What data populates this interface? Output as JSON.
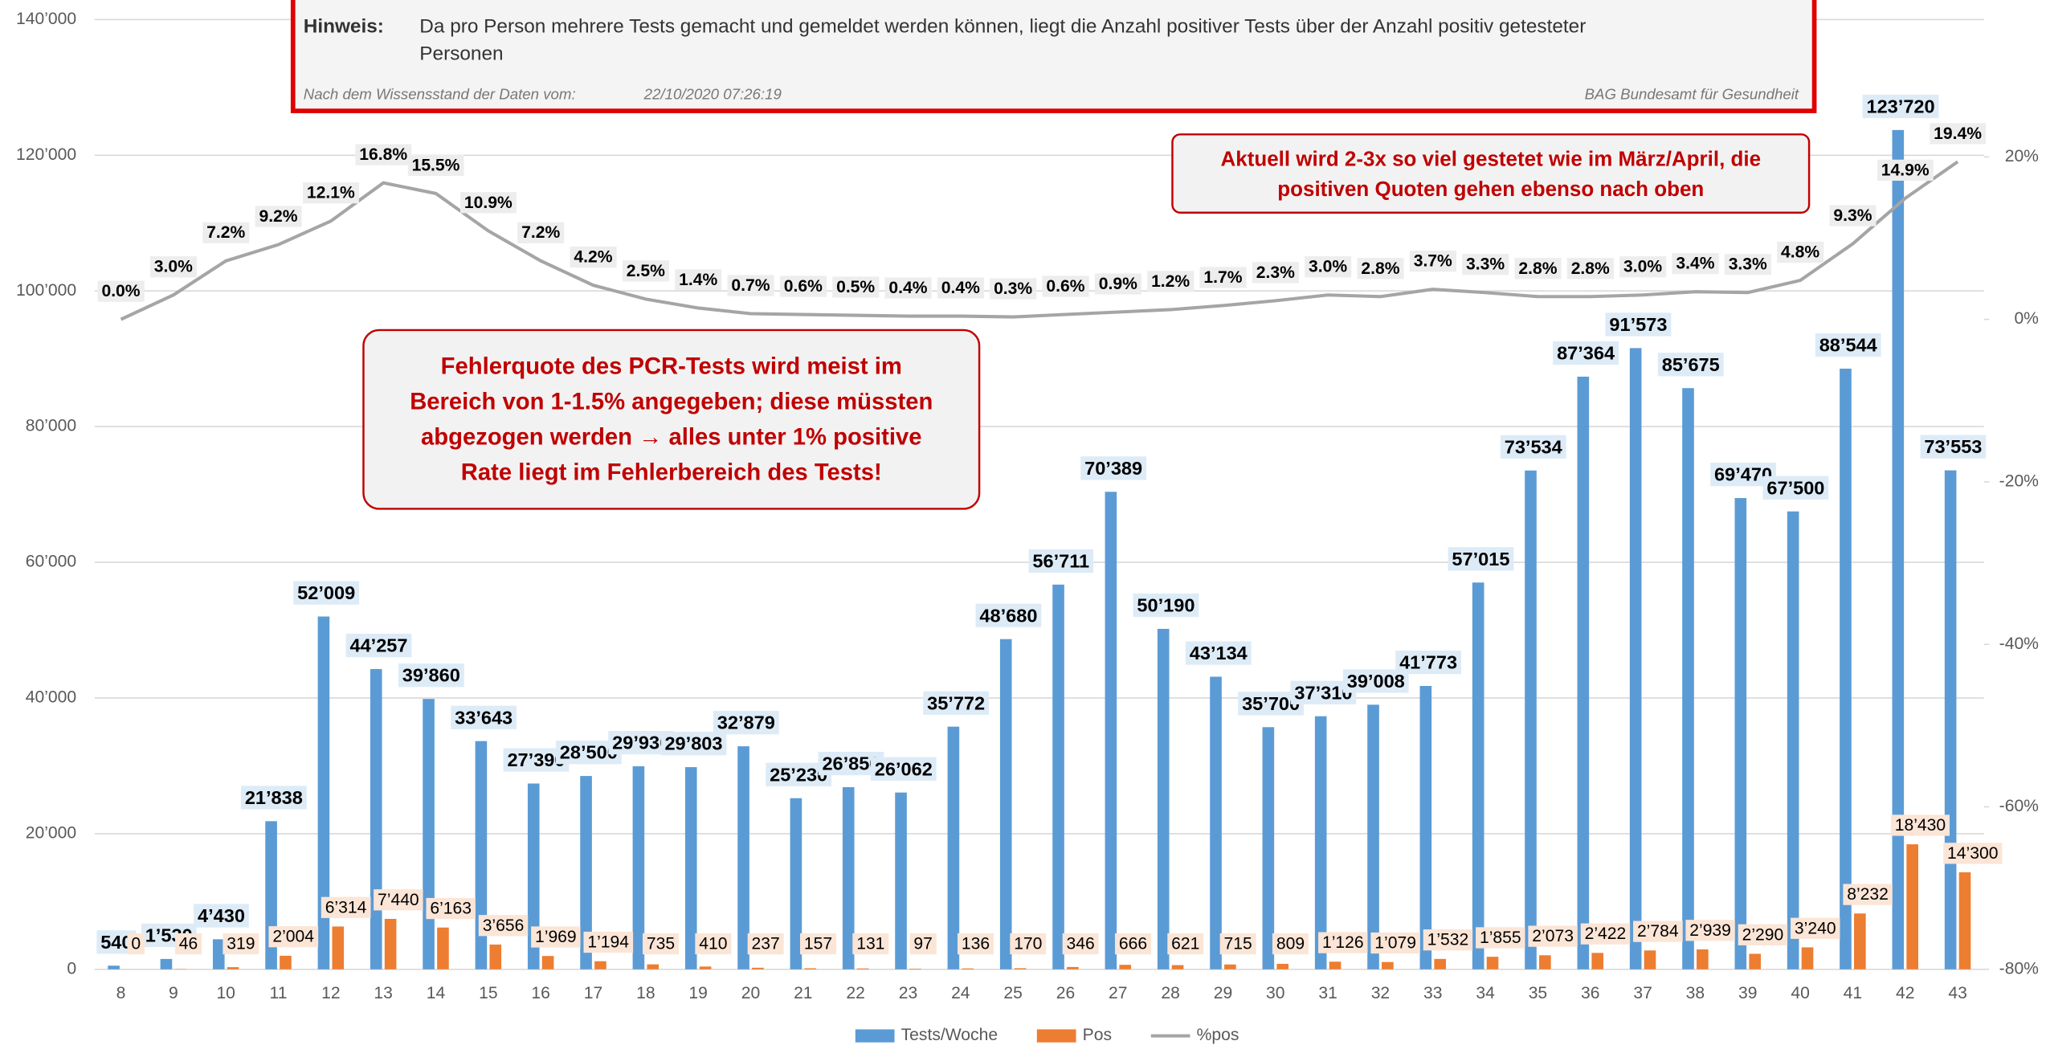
{
  "chart_data": {
    "type": "bar",
    "categories": [
      "8",
      "9",
      "10",
      "11",
      "12",
      "13",
      "14",
      "15",
      "16",
      "17",
      "18",
      "19",
      "20",
      "21",
      "22",
      "23",
      "24",
      "25",
      "26",
      "27",
      "28",
      "29",
      "30",
      "31",
      "32",
      "33",
      "34",
      "35",
      "36",
      "37",
      "38",
      "39",
      "40",
      "41",
      "42",
      "43"
    ],
    "series": [
      {
        "name": "Tests/Woche",
        "type": "bar",
        "color": "#5b9bd5",
        "values": [
          540,
          1530,
          4430,
          21838,
          52009,
          44257,
          39860,
          33643,
          27390,
          28500,
          29930,
          29803,
          32879,
          25230,
          26850,
          26062,
          35772,
          48680,
          56711,
          70389,
          50190,
          43134,
          35700,
          37310,
          39008,
          41773,
          57015,
          73534,
          87364,
          91573,
          85675,
          69470,
          67500,
          88544,
          123720,
          73553
        ],
        "value_labels": [
          "540",
          "1’530",
          "4’430",
          "21’838",
          "52’009",
          "44’257",
          "39’860",
          "33’643",
          "27’390",
          "28’500",
          "29’930",
          "29’803",
          "32’879",
          "25’230",
          "26’850",
          "26’062",
          "35’772",
          "48’680",
          "56’711",
          "70’389",
          "50’190",
          "43’134",
          "35’700",
          "37’310",
          "39’008",
          "41’773",
          "57’015",
          "73’534",
          "87’364",
          "91’573",
          "85’675",
          "69’470",
          "67’500",
          "88’544",
          "123’720",
          "73’553"
        ]
      },
      {
        "name": "Pos",
        "type": "bar",
        "color": "#ed7d31",
        "values": [
          0,
          46,
          319,
          2004,
          6314,
          7440,
          6163,
          3656,
          1969,
          1194,
          735,
          410,
          237,
          157,
          131,
          97,
          136,
          170,
          346,
          666,
          621,
          715,
          809,
          1126,
          1079,
          1532,
          1855,
          2073,
          2422,
          2784,
          2939,
          2290,
          3240,
          8232,
          18430,
          14300
        ],
        "value_labels": [
          "0",
          "46",
          "319",
          "2’004",
          "6’314",
          "7’440",
          "6’163",
          "3’656",
          "1’969",
          "1’194",
          "735",
          "410",
          "237",
          "157",
          "131",
          "97",
          "136",
          "170",
          "346",
          "666",
          "621",
          "715",
          "809",
          "1’126",
          "1’079",
          "1’532",
          "1’855",
          "2’073",
          "2’422",
          "2’784",
          "2’939",
          "2’290",
          "3’240",
          "8’232",
          "18’430",
          "14’300"
        ]
      },
      {
        "name": "%pos",
        "type": "line",
        "axis": "y2",
        "color": "#a5a5a5",
        "values": [
          0.0,
          3.0,
          7.2,
          9.2,
          12.1,
          16.8,
          15.5,
          10.9,
          7.2,
          4.2,
          2.5,
          1.4,
          0.7,
          0.6,
          0.5,
          0.4,
          0.4,
          0.3,
          0.6,
          0.9,
          1.2,
          1.7,
          2.3,
          3.0,
          2.8,
          3.7,
          3.3,
          2.8,
          2.8,
          3.0,
          3.4,
          3.3,
          4.8,
          9.3,
          14.9,
          19.4
        ],
        "value_labels": [
          "0.0%",
          "3.0%",
          "7.2%",
          "9.2%",
          "12.1%",
          "16.8%",
          "15.5%",
          "10.9%",
          "7.2%",
          "4.2%",
          "2.5%",
          "1.4%",
          "0.7%",
          "0.6%",
          "0.5%",
          "0.4%",
          "0.4%",
          "0.3%",
          "0.6%",
          "0.9%",
          "1.2%",
          "1.7%",
          "2.3%",
          "3.0%",
          "2.8%",
          "3.7%",
          "3.3%",
          "2.8%",
          "2.8%",
          "3.0%",
          "3.4%",
          "3.3%",
          "4.8%",
          "9.3%",
          "14.9%",
          "19.4%"
        ]
      }
    ],
    "ylim": [
      0,
      140000
    ],
    "yticks": [
      0,
      {
        "value": 20000,
        "label": "20’000"
      },
      {
        "value": 40000,
        "label": "40’000"
      },
      {
        "value": 60000,
        "label": "60’000"
      },
      {
        "value": 80000,
        "label": "80’000"
      },
      {
        "value": 100000,
        "label": "100’000"
      },
      {
        "value": 120000,
        "label": "120’000"
      },
      {
        "value": 140000,
        "label": "140’000"
      }
    ],
    "y2lim": [
      -80,
      36.9
    ],
    "y2ticks": [
      {
        "value": -80,
        "label": "-80%"
      },
      {
        "value": -60,
        "label": "-60%"
      },
      {
        "value": -40,
        "label": "-40%"
      },
      {
        "value": -20,
        "label": "-20%"
      },
      {
        "value": 0,
        "label": "0%"
      },
      {
        "value": 20,
        "label": "20%"
      }
    ],
    "grid": true,
    "legend": "bottom",
    "notice": {
      "label": "Hinweis:",
      "lines": [
        "Da pro Person mehrere Tests gemacht und gemeldet werden können, liegt die Anzahl positiver Tests über der Anzahl positiv getesteter",
        "Personen"
      ],
      "date_label": "Nach dem Wissensstand der Daten vom:",
      "date": "22/10/2020 07:26:19",
      "source": "BAG Bundesamt für Gesundheit"
    },
    "annotations": [
      {
        "lines": [
          "Aktuell wird 2-3x so viel gestetet wie im März/April, die",
          "positiven Quoten gehen ebenso nach oben"
        ]
      },
      {
        "lines": [
          "Fehlerquote des PCR-Tests wird meist im",
          "Bereich von 1-1.5% angegeben; diese müssten",
          "abgezogen werden → alles unter 1% positive",
          "Rate liegt im Fehlerbereich des Tests!"
        ]
      }
    ]
  }
}
